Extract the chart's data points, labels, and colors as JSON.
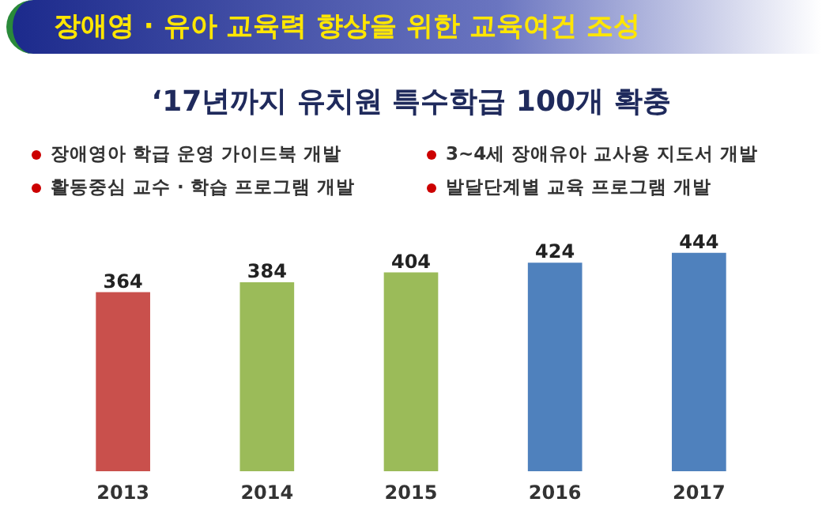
{
  "chart_data": {
    "type": "bar",
    "title": "장애영 · 유아 교육력 향상을 위한 교육여건 조성",
    "subtitle": "‘17년까지 유치원 특수학급 100개 확충",
    "annotations": [
      "장애영아 학급 운영 가이드북 개발",
      "3~4세 장애유아 교사용 지도서 개발",
      "활동중심 교수 · 학습 프로그램 개발",
      "발달단계별 교육 프로그램 개발"
    ],
    "categories": [
      "2013",
      "2014",
      "2015",
      "2016",
      "2017"
    ],
    "values": [
      364,
      384,
      404,
      424,
      444
    ],
    "colors": [
      "#c9504c",
      "#9bbb59",
      "#9bbb59",
      "#4f81bd",
      "#4f81bd"
    ],
    "data_labels": true,
    "grid": false
  }
}
